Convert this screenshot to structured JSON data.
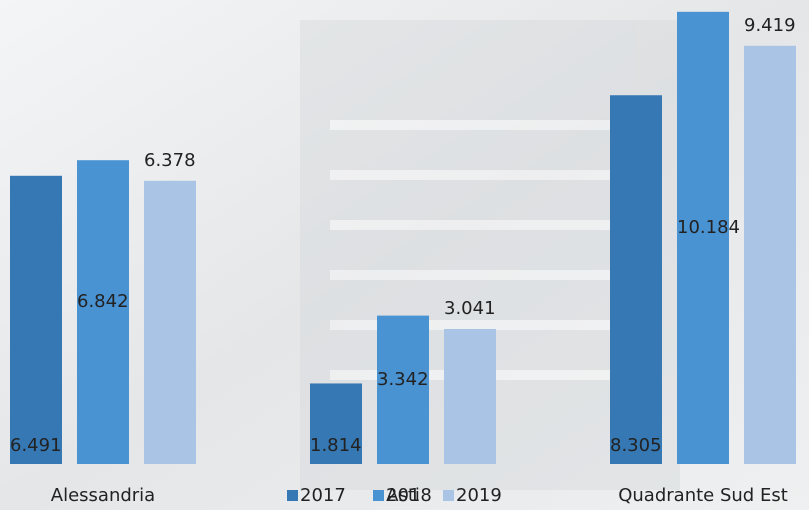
{
  "chart_data": {
    "type": "bar",
    "categories": [
      "Alessandria",
      "Asti",
      "Quadrante Sud Est"
    ],
    "series": [
      {
        "name": "2017",
        "color": "#3578b4",
        "values": [
          6.491,
          1.814,
          8.305
        ]
      },
      {
        "name": "2018",
        "color": "#4a93d3",
        "values": [
          6.842,
          3.342,
          10.184
        ]
      },
      {
        "name": "2019",
        "color": "#a9c4e4",
        "values": [
          6.378,
          3.041,
          9.419
        ]
      }
    ],
    "ylim": [
      0,
      10.45
    ],
    "legend": "bottom"
  }
}
